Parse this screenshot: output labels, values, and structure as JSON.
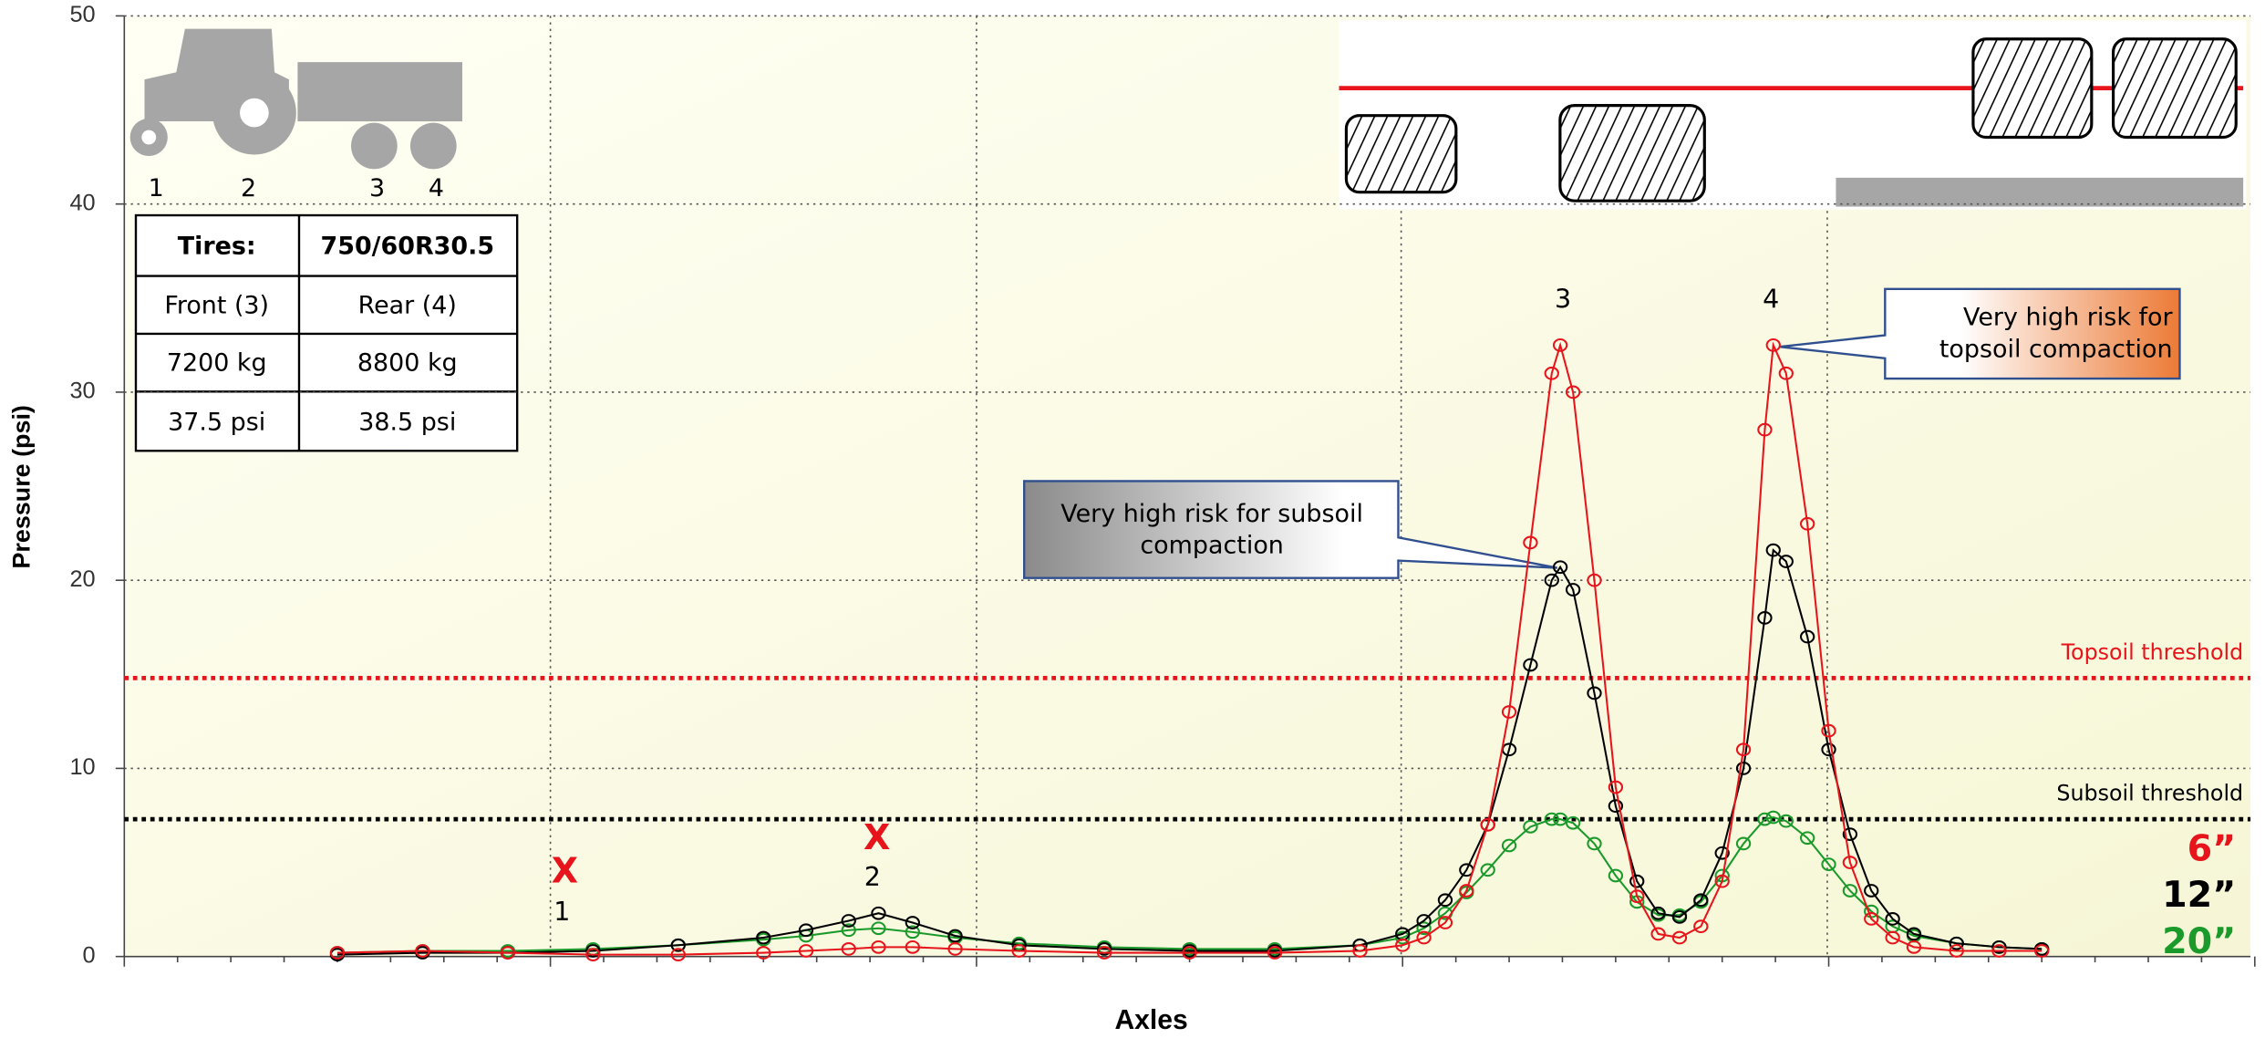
{
  "chart_data": {
    "type": "line",
    "ylabel": "Pressure (psi)",
    "xlabel": "Axles",
    "ylim": [
      0,
      50
    ],
    "yticks": [
      0,
      10,
      20,
      30,
      40,
      50
    ],
    "xlim": [
      0,
      5
    ],
    "grid": true,
    "x": [
      0.5,
      0.7,
      0.9,
      1.1,
      1.3,
      1.5,
      1.6,
      1.7,
      1.77,
      1.85,
      1.95,
      2.1,
      2.3,
      2.5,
      2.7,
      2.9,
      3.0,
      3.05,
      3.1,
      3.15,
      3.2,
      3.25,
      3.3,
      3.35,
      3.37,
      3.4,
      3.45,
      3.5,
      3.55,
      3.6,
      3.65,
      3.7,
      3.75,
      3.8,
      3.85,
      3.87,
      3.9,
      3.95,
      4.0,
      4.05,
      4.1,
      4.15,
      4.2,
      4.3,
      4.4,
      4.5
    ],
    "series": [
      {
        "name": "20”",
        "color": "#1a9a2a",
        "values": [
          0.2,
          0.3,
          0.3,
          0.4,
          0.6,
          0.9,
          1.1,
          1.4,
          1.5,
          1.3,
          1.0,
          0.7,
          0.5,
          0.4,
          0.4,
          0.6,
          1.0,
          1.5,
          2.3,
          3.4,
          4.6,
          5.9,
          6.9,
          7.3,
          7.3,
          7.1,
          6,
          4.3,
          2.9,
          2.2,
          2.2,
          2.9,
          4.3,
          6,
          7.3,
          7.4,
          7.2,
          6.3,
          4.9,
          3.5,
          2.4,
          1.6,
          1.1,
          0.7,
          0.5,
          0.4
        ]
      },
      {
        "name": "12”",
        "color": "#000000",
        "values": [
          0.1,
          0.2,
          0.2,
          0.3,
          0.6,
          1.0,
          1.4,
          1.9,
          2.3,
          1.8,
          1.1,
          0.6,
          0.4,
          0.3,
          0.3,
          0.6,
          1.2,
          1.9,
          3.0,
          4.6,
          7,
          11,
          15.5,
          20,
          20.7,
          19.5,
          14,
          8,
          4,
          2.3,
          2.1,
          3,
          5.5,
          10,
          18,
          21.6,
          21,
          17,
          11,
          6.5,
          3.5,
          2,
          1.2,
          0.7,
          0.5,
          0.4
        ]
      },
      {
        "name": "6”",
        "color": "#e8141c",
        "values": [
          0.2,
          0.3,
          0.2,
          0.1,
          0.1,
          0.2,
          0.3,
          0.4,
          0.5,
          0.5,
          0.4,
          0.3,
          0.2,
          0.2,
          0.2,
          0.3,
          0.6,
          1.0,
          1.8,
          3.5,
          7,
          13,
          22,
          31,
          32.5,
          30,
          20,
          9,
          3.2,
          1.2,
          1.0,
          1.6,
          4,
          11,
          28,
          32.5,
          31,
          23,
          12,
          5,
          2,
          1,
          0.5,
          0.3,
          0.3,
          0.3
        ]
      }
    ],
    "reference_lines": [
      {
        "label": "Topsoil threshold",
        "value": 14.8,
        "color": "#e8141c"
      },
      {
        "label": "Subsoil threshold",
        "value": 7.3,
        "color": "#000000"
      }
    ],
    "axle_labels": [
      "1",
      "2",
      "3",
      "4"
    ],
    "excluded_marks": [
      "X",
      "X"
    ],
    "icon_labels": [
      "1",
      "2",
      "3",
      "4"
    ],
    "callouts": [
      "Very high risk for subsoil compaction",
      "Very high risk for topsoil compaction"
    ],
    "table": {
      "header": [
        "Tires:",
        "750/60R30.5"
      ],
      "rows": [
        [
          "Front (3)",
          "Rear (4)"
        ],
        [
          "7200 kg",
          "8800 kg"
        ],
        [
          "37.5 psi",
          "38.5 psi"
        ]
      ]
    }
  }
}
